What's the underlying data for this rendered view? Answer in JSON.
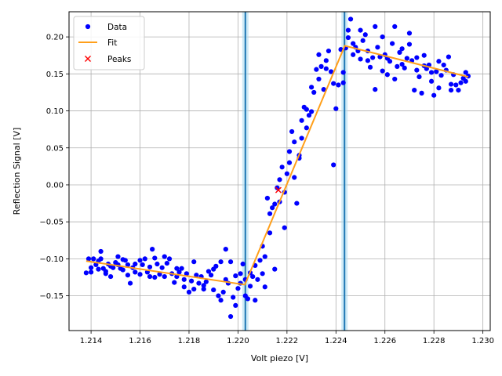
{
  "chart_data": {
    "type": "scatter",
    "xlabel": "Volt piezo [V]",
    "ylabel": "Reflection Signal [V]",
    "xlim": [
      1.2131,
      1.2303
    ],
    "ylim": [
      -0.197,
      0.234
    ],
    "x_ticks": [
      1.214,
      1.216,
      1.218,
      1.22,
      1.222,
      1.224,
      1.226,
      1.228,
      1.23
    ],
    "x_tick_labels": [
      "1.214",
      "1.216",
      "1.218",
      "1.220",
      "1.222",
      "1.224",
      "1.226",
      "1.228",
      "1.230"
    ],
    "y_ticks": [
      -0.15,
      -0.1,
      -0.05,
      0.0,
      0.05,
      0.1,
      0.15,
      0.2
    ],
    "y_tick_labels": [
      "−0.15",
      "−0.10",
      "−0.05",
      "0.00",
      "0.05",
      "0.10",
      "0.15",
      "0.20"
    ],
    "grid": true,
    "legend_position": "top-left",
    "vertical_lines": [
      {
        "x": 1.2203,
        "band_halfwidth": 8e-05,
        "color": "#1f77b4"
      },
      {
        "x": 1.22435,
        "band_halfwidth": 8e-05,
        "color": "#1f77b4"
      }
    ],
    "series": [
      {
        "name": "Data",
        "kind": "scatter",
        "color": "#0000ff",
        "points": [
          [
            1.2138,
            -0.119
          ],
          [
            1.2139,
            -0.1
          ],
          [
            1.214,
            -0.112
          ],
          [
            1.214,
            -0.118
          ],
          [
            1.2141,
            -0.1
          ],
          [
            1.2142,
            -0.108
          ],
          [
            1.2143,
            -0.114
          ],
          [
            1.2143,
            -0.103
          ],
          [
            1.2144,
            -0.09
          ],
          [
            1.2144,
            -0.1
          ],
          [
            1.2145,
            -0.113
          ],
          [
            1.2146,
            -0.12
          ],
          [
            1.2146,
            -0.117
          ],
          [
            1.2147,
            -0.107
          ],
          [
            1.2148,
            -0.11
          ],
          [
            1.2148,
            -0.124
          ],
          [
            1.2149,
            -0.112
          ],
          [
            1.215,
            -0.105
          ],
          [
            1.2151,
            -0.108
          ],
          [
            1.2151,
            -0.097
          ],
          [
            1.2152,
            -0.113
          ],
          [
            1.2153,
            -0.115
          ],
          [
            1.2153,
            -0.101
          ],
          [
            1.2154,
            -0.102
          ],
          [
            1.2155,
            -0.122
          ],
          [
            1.2155,
            -0.108
          ],
          [
            1.2156,
            -0.133
          ],
          [
            1.2157,
            -0.112
          ],
          [
            1.2158,
            -0.107
          ],
          [
            1.2158,
            -0.118
          ],
          [
            1.216,
            -0.102
          ],
          [
            1.216,
            -0.121
          ],
          [
            1.2161,
            -0.108
          ],
          [
            1.2162,
            -0.1
          ],
          [
            1.2163,
            -0.118
          ],
          [
            1.2164,
            -0.124
          ],
          [
            1.2164,
            -0.111
          ],
          [
            1.2165,
            -0.087
          ],
          [
            1.2166,
            -0.099
          ],
          [
            1.2166,
            -0.125
          ],
          [
            1.2167,
            -0.107
          ],
          [
            1.2168,
            -0.121
          ],
          [
            1.2169,
            -0.112
          ],
          [
            1.217,
            -0.097
          ],
          [
            1.217,
            -0.124
          ],
          [
            1.2171,
            -0.106
          ],
          [
            1.2172,
            -0.1
          ],
          [
            1.2173,
            -0.12
          ],
          [
            1.2174,
            -0.132
          ],
          [
            1.2175,
            -0.124
          ],
          [
            1.2175,
            -0.113
          ],
          [
            1.2176,
            -0.118
          ],
          [
            1.2177,
            -0.113
          ],
          [
            1.2178,
            -0.128
          ],
          [
            1.2178,
            -0.138
          ],
          [
            1.2179,
            -0.12
          ],
          [
            1.218,
            -0.145
          ],
          [
            1.2181,
            -0.13
          ],
          [
            1.2182,
            -0.141
          ],
          [
            1.2182,
            -0.104
          ],
          [
            1.2183,
            -0.122
          ],
          [
            1.2184,
            -0.133
          ],
          [
            1.2185,
            -0.124
          ],
          [
            1.2186,
            -0.141
          ],
          [
            1.2186,
            -0.136
          ],
          [
            1.2187,
            -0.131
          ],
          [
            1.2188,
            -0.117
          ],
          [
            1.2189,
            -0.122
          ],
          [
            1.219,
            -0.114
          ],
          [
            1.219,
            -0.142
          ],
          [
            1.2191,
            -0.11
          ],
          [
            1.2192,
            -0.15
          ],
          [
            1.2193,
            -0.156
          ],
          [
            1.2193,
            -0.104
          ],
          [
            1.2194,
            -0.145
          ],
          [
            1.2195,
            -0.087
          ],
          [
            1.2195,
            -0.128
          ],
          [
            1.2196,
            -0.133
          ],
          [
            1.2197,
            -0.178
          ],
          [
            1.2197,
            -0.104
          ],
          [
            1.2198,
            -0.152
          ],
          [
            1.2199,
            -0.123
          ],
          [
            1.2199,
            -0.163
          ],
          [
            1.22,
            -0.14
          ],
          [
            1.2201,
            -0.133
          ],
          [
            1.2201,
            -0.12
          ],
          [
            1.2202,
            -0.107
          ],
          [
            1.2203,
            -0.15
          ],
          [
            1.2203,
            -0.128
          ],
          [
            1.2204,
            -0.154
          ],
          [
            1.2205,
            -0.137
          ],
          [
            1.2205,
            -0.119
          ],
          [
            1.2206,
            -0.124
          ],
          [
            1.2207,
            -0.109
          ],
          [
            1.2207,
            -0.156
          ],
          [
            1.2208,
            -0.128
          ],
          [
            1.2209,
            -0.102
          ],
          [
            1.221,
            -0.12
          ],
          [
            1.221,
            -0.083
          ],
          [
            1.2211,
            -0.138
          ],
          [
            1.2211,
            -0.097
          ],
          [
            1.2212,
            -0.018
          ],
          [
            1.2213,
            -0.065
          ],
          [
            1.2213,
            -0.039
          ],
          [
            1.2214,
            -0.031
          ],
          [
            1.2215,
            -0.114
          ],
          [
            1.2215,
            -0.026
          ],
          [
            1.2216,
            -0.004
          ],
          [
            1.2217,
            0.007
          ],
          [
            1.2217,
            -0.023
          ],
          [
            1.2218,
            0.024
          ],
          [
            1.2219,
            -0.01
          ],
          [
            1.2219,
            -0.058
          ],
          [
            1.222,
            0.015
          ],
          [
            1.2221,
            0.03
          ],
          [
            1.2221,
            0.045
          ],
          [
            1.2222,
            0.072
          ],
          [
            1.2223,
            0.058
          ],
          [
            1.2223,
            0.01
          ],
          [
            1.2224,
            -0.025
          ],
          [
            1.2225,
            0.036
          ],
          [
            1.2225,
            0.04
          ],
          [
            1.2226,
            0.063
          ],
          [
            1.2226,
            0.087
          ],
          [
            1.2227,
            0.105
          ],
          [
            1.2228,
            0.102
          ],
          [
            1.2228,
            0.077
          ],
          [
            1.2229,
            0.094
          ],
          [
            1.223,
            0.099
          ],
          [
            1.223,
            0.132
          ],
          [
            1.2231,
            0.125
          ],
          [
            1.2232,
            0.156
          ],
          [
            1.2233,
            0.143
          ],
          [
            1.2233,
            0.176
          ],
          [
            1.2234,
            0.16
          ],
          [
            1.2235,
            0.129
          ],
          [
            1.2236,
            0.157
          ],
          [
            1.2236,
            0.168
          ],
          [
            1.2237,
            0.181
          ],
          [
            1.2238,
            0.153
          ],
          [
            1.2239,
            0.137
          ],
          [
            1.2239,
            0.027
          ],
          [
            1.224,
            0.103
          ],
          [
            1.2241,
            0.135
          ],
          [
            1.2242,
            0.183
          ],
          [
            1.2243,
            0.138
          ],
          [
            1.2243,
            0.152
          ],
          [
            1.2244,
            0.185
          ],
          [
            1.2245,
            0.209
          ],
          [
            1.2245,
            0.199
          ],
          [
            1.2246,
            0.224
          ],
          [
            1.2247,
            0.176
          ],
          [
            1.2247,
            0.191
          ],
          [
            1.2248,
            0.186
          ],
          [
            1.2249,
            0.181
          ],
          [
            1.225,
            0.209
          ],
          [
            1.225,
            0.17
          ],
          [
            1.2251,
            0.195
          ],
          [
            1.2252,
            0.203
          ],
          [
            1.2253,
            0.168
          ],
          [
            1.2253,
            0.181
          ],
          [
            1.2254,
            0.159
          ],
          [
            1.2255,
            0.172
          ],
          [
            1.2256,
            0.214
          ],
          [
            1.2256,
            0.129
          ],
          [
            1.2257,
            0.186
          ],
          [
            1.2258,
            0.173
          ],
          [
            1.2259,
            0.154
          ],
          [
            1.2259,
            0.2
          ],
          [
            1.226,
            0.176
          ],
          [
            1.2261,
            0.149
          ],
          [
            1.2261,
            0.171
          ],
          [
            1.2262,
            0.167
          ],
          [
            1.2263,
            0.191
          ],
          [
            1.2264,
            0.214
          ],
          [
            1.2264,
            0.143
          ],
          [
            1.2265,
            0.16
          ],
          [
            1.2266,
            0.179
          ],
          [
            1.2267,
            0.163
          ],
          [
            1.2267,
            0.184
          ],
          [
            1.2268,
            0.158
          ],
          [
            1.2269,
            0.171
          ],
          [
            1.227,
            0.19
          ],
          [
            1.227,
            0.205
          ],
          [
            1.2271,
            0.168
          ],
          [
            1.2272,
            0.128
          ],
          [
            1.2273,
            0.155
          ],
          [
            1.2273,
            0.172
          ],
          [
            1.2274,
            0.146
          ],
          [
            1.2275,
            0.124
          ],
          [
            1.2276,
            0.161
          ],
          [
            1.2276,
            0.175
          ],
          [
            1.2277,
            0.157
          ],
          [
            1.2278,
            0.162
          ],
          [
            1.2279,
            0.152
          ],
          [
            1.2279,
            0.14
          ],
          [
            1.228,
            0.121
          ],
          [
            1.2281,
            0.153
          ],
          [
            1.2282,
            0.167
          ],
          [
            1.2282,
            0.131
          ],
          [
            1.2283,
            0.148
          ],
          [
            1.2284,
            0.162
          ],
          [
            1.2285,
            0.155
          ],
          [
            1.2286,
            0.173
          ],
          [
            1.2287,
            0.136
          ],
          [
            1.2287,
            0.128
          ],
          [
            1.2288,
            0.149
          ],
          [
            1.2289,
            0.135
          ],
          [
            1.229,
            0.128
          ],
          [
            1.2291,
            0.138
          ],
          [
            1.2292,
            0.144
          ],
          [
            1.2293,
            0.152
          ],
          [
            1.2293,
            0.14
          ],
          [
            1.2294,
            0.147
          ]
        ]
      },
      {
        "name": "Fit",
        "kind": "line",
        "color": "#ff9f1a",
        "points": [
          [
            1.2138,
            -0.103
          ],
          [
            1.22028,
            -0.135
          ],
          [
            1.22436,
            0.188
          ],
          [
            1.2294,
            0.146
          ]
        ]
      },
      {
        "name": "Peaks",
        "kind": "marker-x",
        "color": "#ff0000",
        "points": [
          [
            1.22165,
            -0.007
          ]
        ]
      }
    ]
  }
}
